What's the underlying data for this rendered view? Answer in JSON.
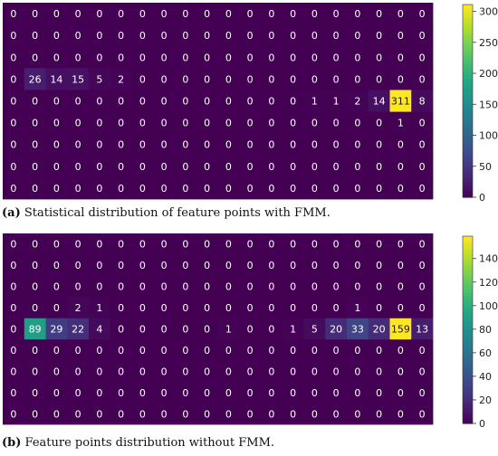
{
  "chart_data": [
    {
      "type": "heatmap",
      "caption_label": "(a)",
      "caption_text": "Statistical distribution of feature points with FMM.",
      "colormap": "viridis",
      "rows": [
        [
          0,
          0,
          0,
          0,
          0,
          0,
          0,
          0,
          0,
          0,
          0,
          0,
          0,
          0,
          0,
          0,
          0,
          0,
          0,
          0
        ],
        [
          0,
          0,
          0,
          0,
          0,
          0,
          0,
          0,
          0,
          0,
          0,
          0,
          0,
          0,
          0,
          0,
          0,
          0,
          0,
          0
        ],
        [
          0,
          0,
          0,
          0,
          0,
          0,
          0,
          0,
          0,
          0,
          0,
          0,
          0,
          0,
          0,
          0,
          0,
          0,
          0,
          0
        ],
        [
          0,
          26,
          14,
          15,
          5,
          2,
          0,
          0,
          0,
          0,
          0,
          0,
          0,
          0,
          0,
          0,
          0,
          0,
          0,
          0
        ],
        [
          0,
          0,
          0,
          0,
          0,
          0,
          0,
          0,
          0,
          0,
          0,
          0,
          0,
          0,
          1,
          1,
          2,
          14,
          311,
          8
        ],
        [
          0,
          0,
          0,
          0,
          0,
          0,
          0,
          0,
          0,
          0,
          0,
          0,
          0,
          0,
          0,
          0,
          0,
          0,
          1,
          0
        ],
        [
          0,
          0,
          0,
          0,
          0,
          0,
          0,
          0,
          0,
          0,
          0,
          0,
          0,
          0,
          0,
          0,
          0,
          0,
          0,
          0
        ],
        [
          0,
          0,
          0,
          0,
          0,
          0,
          0,
          0,
          0,
          0,
          0,
          0,
          0,
          0,
          0,
          0,
          0,
          0,
          0,
          0
        ],
        [
          0,
          0,
          0,
          0,
          0,
          0,
          0,
          0,
          0,
          0,
          0,
          0,
          0,
          0,
          0,
          0,
          0,
          0,
          0,
          0
        ]
      ],
      "colorbar_max": 311,
      "colorbar_ticks": [
        0,
        50,
        100,
        150,
        200,
        250,
        300
      ]
    },
    {
      "type": "heatmap",
      "caption_label": "(b)",
      "caption_text": "Feature points distribution without FMM.",
      "colormap": "viridis",
      "rows": [
        [
          0,
          0,
          0,
          0,
          0,
          0,
          0,
          0,
          0,
          0,
          0,
          0,
          0,
          0,
          0,
          0,
          0,
          0,
          0,
          0
        ],
        [
          0,
          0,
          0,
          0,
          0,
          0,
          0,
          0,
          0,
          0,
          0,
          0,
          0,
          0,
          0,
          0,
          0,
          0,
          0,
          0
        ],
        [
          0,
          0,
          0,
          0,
          0,
          0,
          0,
          0,
          0,
          0,
          0,
          0,
          0,
          0,
          0,
          0,
          0,
          0,
          0,
          0
        ],
        [
          0,
          0,
          0,
          2,
          1,
          0,
          0,
          0,
          0,
          0,
          0,
          0,
          0,
          0,
          0,
          0,
          1,
          0,
          0,
          0
        ],
        [
          0,
          89,
          29,
          22,
          4,
          0,
          0,
          0,
          0,
          0,
          1,
          0,
          0,
          1,
          5,
          20,
          33,
          20,
          159,
          13
        ],
        [
          0,
          0,
          0,
          0,
          0,
          0,
          0,
          0,
          0,
          0,
          0,
          0,
          0,
          0,
          0,
          0,
          0,
          0,
          0,
          0
        ],
        [
          0,
          0,
          0,
          0,
          0,
          0,
          0,
          0,
          0,
          0,
          0,
          0,
          0,
          0,
          0,
          0,
          0,
          0,
          0,
          0
        ],
        [
          0,
          0,
          0,
          0,
          0,
          0,
          0,
          0,
          0,
          0,
          0,
          0,
          0,
          0,
          0,
          0,
          0,
          0,
          0,
          0
        ],
        [
          0,
          0,
          0,
          0,
          0,
          0,
          0,
          0,
          0,
          0,
          0,
          0,
          0,
          0,
          0,
          0,
          0,
          0,
          0,
          0
        ]
      ],
      "colorbar_max": 159,
      "colorbar_ticks": [
        0,
        20,
        40,
        60,
        80,
        100,
        120,
        140
      ]
    }
  ]
}
